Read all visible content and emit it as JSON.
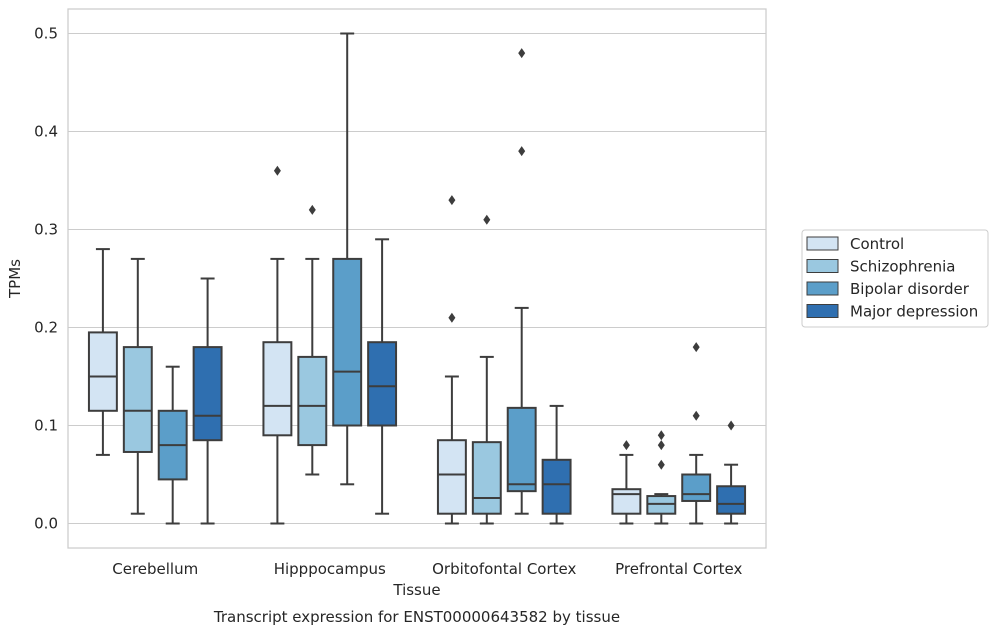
{
  "chart_data": {
    "type": "box",
    "xlabel": "Tissue",
    "ylabel": "TPMs",
    "caption": "Transcript expression for ENST00000643582 by tissue",
    "ylim": [
      -0.025,
      0.525
    ],
    "yticks": [
      0.0,
      0.1,
      0.2,
      0.3,
      0.4,
      0.5
    ],
    "ytick_labels": [
      "0.0",
      "0.1",
      "0.2",
      "0.3",
      "0.4",
      "0.5"
    ],
    "grid": "horizontal",
    "legend_position": "outside-right",
    "categories": [
      "Cerebellum",
      "Hipppocampus",
      "Orbitofontal Cortex",
      "Prefrontal Cortex"
    ],
    "series": [
      {
        "name": "Control",
        "color": "#d3e4f3",
        "boxes": [
          {
            "min": 0.07,
            "q1": 0.115,
            "median": 0.15,
            "q3": 0.195,
            "max": 0.28,
            "outliers": []
          },
          {
            "min": 0.0,
            "q1": 0.09,
            "median": 0.12,
            "q3": 0.185,
            "max": 0.27,
            "outliers": [
              0.36
            ]
          },
          {
            "min": 0.0,
            "q1": 0.01,
            "median": 0.05,
            "q3": 0.085,
            "max": 0.15,
            "outliers": [
              0.21,
              0.33
            ]
          },
          {
            "min": 0.0,
            "q1": 0.01,
            "median": 0.03,
            "q3": 0.035,
            "max": 0.07,
            "outliers": [
              0.08
            ]
          }
        ]
      },
      {
        "name": "Schizophrenia",
        "color": "#9ac8e0",
        "boxes": [
          {
            "min": 0.01,
            "q1": 0.073,
            "median": 0.115,
            "q3": 0.18,
            "max": 0.27,
            "outliers": []
          },
          {
            "min": 0.05,
            "q1": 0.08,
            "median": 0.12,
            "q3": 0.17,
            "max": 0.27,
            "outliers": [
              0.32
            ]
          },
          {
            "min": 0.0,
            "q1": 0.01,
            "median": 0.026,
            "q3": 0.083,
            "max": 0.17,
            "outliers": [
              0.31
            ]
          },
          {
            "min": 0.0,
            "q1": 0.01,
            "median": 0.02,
            "q3": 0.028,
            "max": 0.03,
            "outliers": [
              0.06,
              0.08,
              0.09
            ]
          }
        ]
      },
      {
        "name": "Bipolar disorder",
        "color": "#5b9ec9",
        "boxes": [
          {
            "min": 0.0,
            "q1": 0.045,
            "median": 0.08,
            "q3": 0.115,
            "max": 0.16,
            "outliers": []
          },
          {
            "min": 0.04,
            "q1": 0.1,
            "median": 0.155,
            "q3": 0.27,
            "max": 0.5,
            "outliers": []
          },
          {
            "min": 0.01,
            "q1": 0.033,
            "median": 0.04,
            "q3": 0.118,
            "max": 0.22,
            "outliers": [
              0.38,
              0.48
            ]
          },
          {
            "min": 0.0,
            "q1": 0.023,
            "median": 0.03,
            "q3": 0.05,
            "max": 0.07,
            "outliers": [
              0.11,
              0.18
            ]
          }
        ]
      },
      {
        "name": "Major depression",
        "color": "#2f6fb0",
        "boxes": [
          {
            "min": 0.0,
            "q1": 0.085,
            "median": 0.11,
            "q3": 0.18,
            "max": 0.25,
            "outliers": []
          },
          {
            "min": 0.01,
            "q1": 0.1,
            "median": 0.14,
            "q3": 0.185,
            "max": 0.29,
            "outliers": []
          },
          {
            "min": 0.0,
            "q1": 0.01,
            "median": 0.04,
            "q3": 0.065,
            "max": 0.12,
            "outliers": []
          },
          {
            "min": 0.0,
            "q1": 0.01,
            "median": 0.02,
            "q3": 0.038,
            "max": 0.06,
            "outliers": [
              0.1
            ]
          }
        ]
      }
    ]
  }
}
